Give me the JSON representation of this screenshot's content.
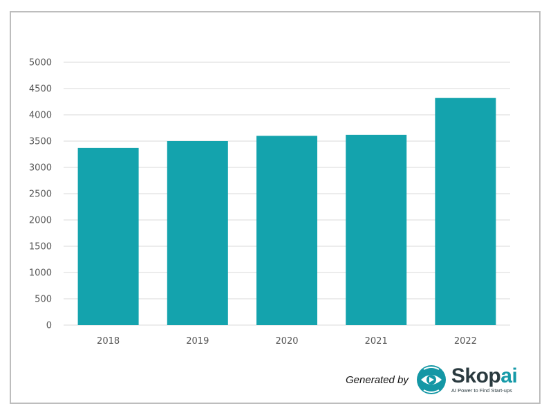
{
  "colors": {
    "bar": "#14a3ad",
    "grid": "#d9d9d9",
    "frame": "#bdbdbd",
    "brand_accent": "#159aa8"
  },
  "chart_data": {
    "type": "bar",
    "title": "",
    "xlabel": "",
    "ylabel": "",
    "categories": [
      "2018",
      "2019",
      "2020",
      "2021",
      "2022"
    ],
    "values": [
      3370,
      3500,
      3600,
      3620,
      4320
    ],
    "ylim": [
      0,
      5000
    ],
    "yticks": [
      0,
      500,
      1000,
      1500,
      2000,
      2500,
      3000,
      3500,
      4000,
      4500,
      5000
    ],
    "grid": true,
    "legend": "none"
  },
  "footer": {
    "generated_by": "Generated by",
    "logo_word_main": "Skop",
    "logo_word_accent": "ai",
    "logo_tagline": "AI Power to Find Start-ups",
    "logo_icon": "skopai-eye-logo-icon"
  }
}
